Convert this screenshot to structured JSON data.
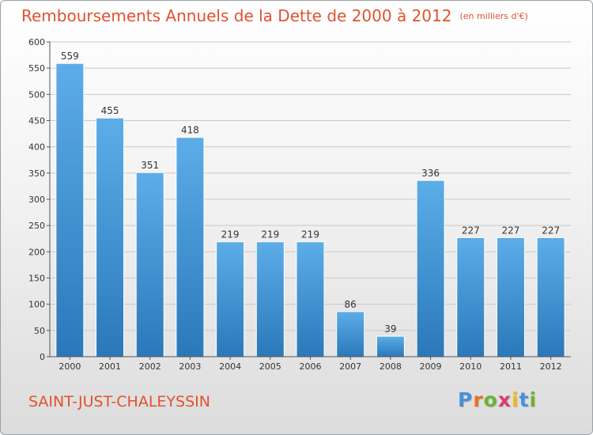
{
  "header": {
    "title": "Remboursements Annuels de la Dette de 2000 à 2012",
    "unit": "(en milliers d'€)"
  },
  "footer": {
    "commune": "SAINT-JUST-CHALEYSSIN",
    "logo": [
      "P",
      "r",
      "o",
      "x",
      "i",
      "t",
      "i"
    ]
  },
  "colors": {
    "title": "#e0522f",
    "bar_top": "#5dade9",
    "bar_bottom": "#2a78b9"
  },
  "chart_data": {
    "type": "bar",
    "categories": [
      "2000",
      "2001",
      "2002",
      "2003",
      "2004",
      "2005",
      "2006",
      "2007",
      "2008",
      "2009",
      "2010",
      "2011",
      "2012"
    ],
    "values": [
      559,
      455,
      351,
      418,
      219,
      219,
      219,
      86,
      39,
      336,
      227,
      227,
      227
    ],
    "title": "Remboursements Annuels de la Dette de 2000 à 2012",
    "xlabel": "",
    "ylabel": "",
    "ylim": [
      0,
      600
    ],
    "yticks": [
      0,
      50,
      100,
      150,
      200,
      250,
      300,
      350,
      400,
      450,
      500,
      550,
      600
    ],
    "grid": true
  }
}
